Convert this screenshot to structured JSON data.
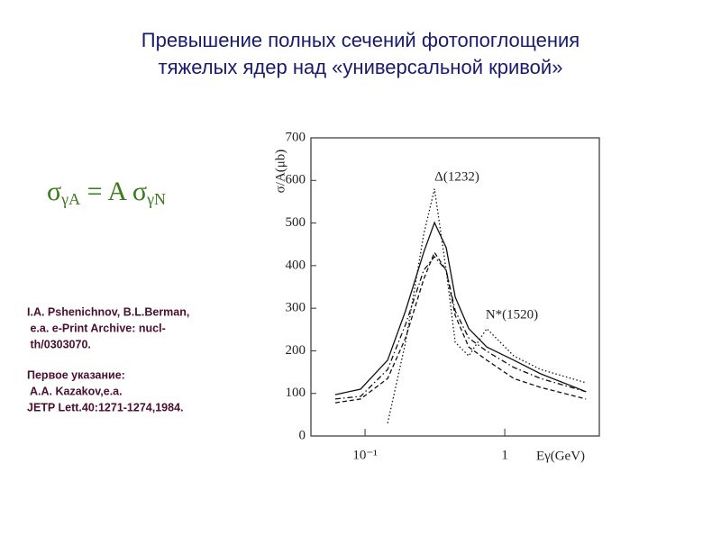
{
  "title_lines": [
    "Превышение полных сечений фотопоглощения",
    "тяжелых ядер над «универсальной кривой»"
  ],
  "formula": [
    "σ",
    "γA",
    " = A σ",
    "γN"
  ],
  "references": [
    "I.A. Pshenichnov, B.L.Berman,",
    " e.a. e-Print Archive: nucl-",
    " th/0303070.",
    "Первое указание:",
    " A.A. Kazakov,e.a.",
    "JETP Lett.40:1271-1274,1984."
  ],
  "chart_data": {
    "type": "line",
    "y_label": "σ/A(μb)",
    "x_label": "Eγ(GeV)",
    "annotations": [
      "Δ(1232)",
      "N*(1520)"
    ],
    "x": [
      0.0612,
      0.093,
      0.145,
      0.195,
      0.263,
      0.314,
      0.381,
      0.442,
      0.552,
      0.743,
      1.16,
      1.81,
      3.81
    ],
    "series": [
      {
        "color": "#111111",
        "style": "solid",
        "values": [
          97,
          110,
          178,
          294,
          431,
          501,
          442,
          326,
          252,
          209,
          178,
          146,
          104
        ]
      },
      {
        "color": "#111111",
        "style": "dotted",
        "values": [
          null,
          null,
          30,
          220,
          473,
          580,
          389,
          220,
          188,
          252,
          188,
          156,
          125
        ]
      },
      {
        "color": "#111111",
        "style": "dashed",
        "values": [
          78,
          87,
          135,
          230,
          368,
          431,
          389,
          283,
          209,
          178,
          135,
          114,
          87
        ]
      },
      {
        "color": "#111111",
        "style": "dashdot",
        "values": [
          87,
          93,
          156,
          262,
          389,
          421,
          389,
          294,
          230,
          199,
          161,
          135,
          104
        ]
      }
    ],
    "log_x": true,
    "xlim": [
      0.041,
      4.75
    ],
    "xticks": [
      {
        "value": 0.1,
        "label": "10⁻¹"
      },
      1
    ],
    "ylim": [
      0,
      700
    ],
    "yticks": [
      0,
      100,
      200,
      300,
      400,
      500,
      600,
      700
    ]
  }
}
